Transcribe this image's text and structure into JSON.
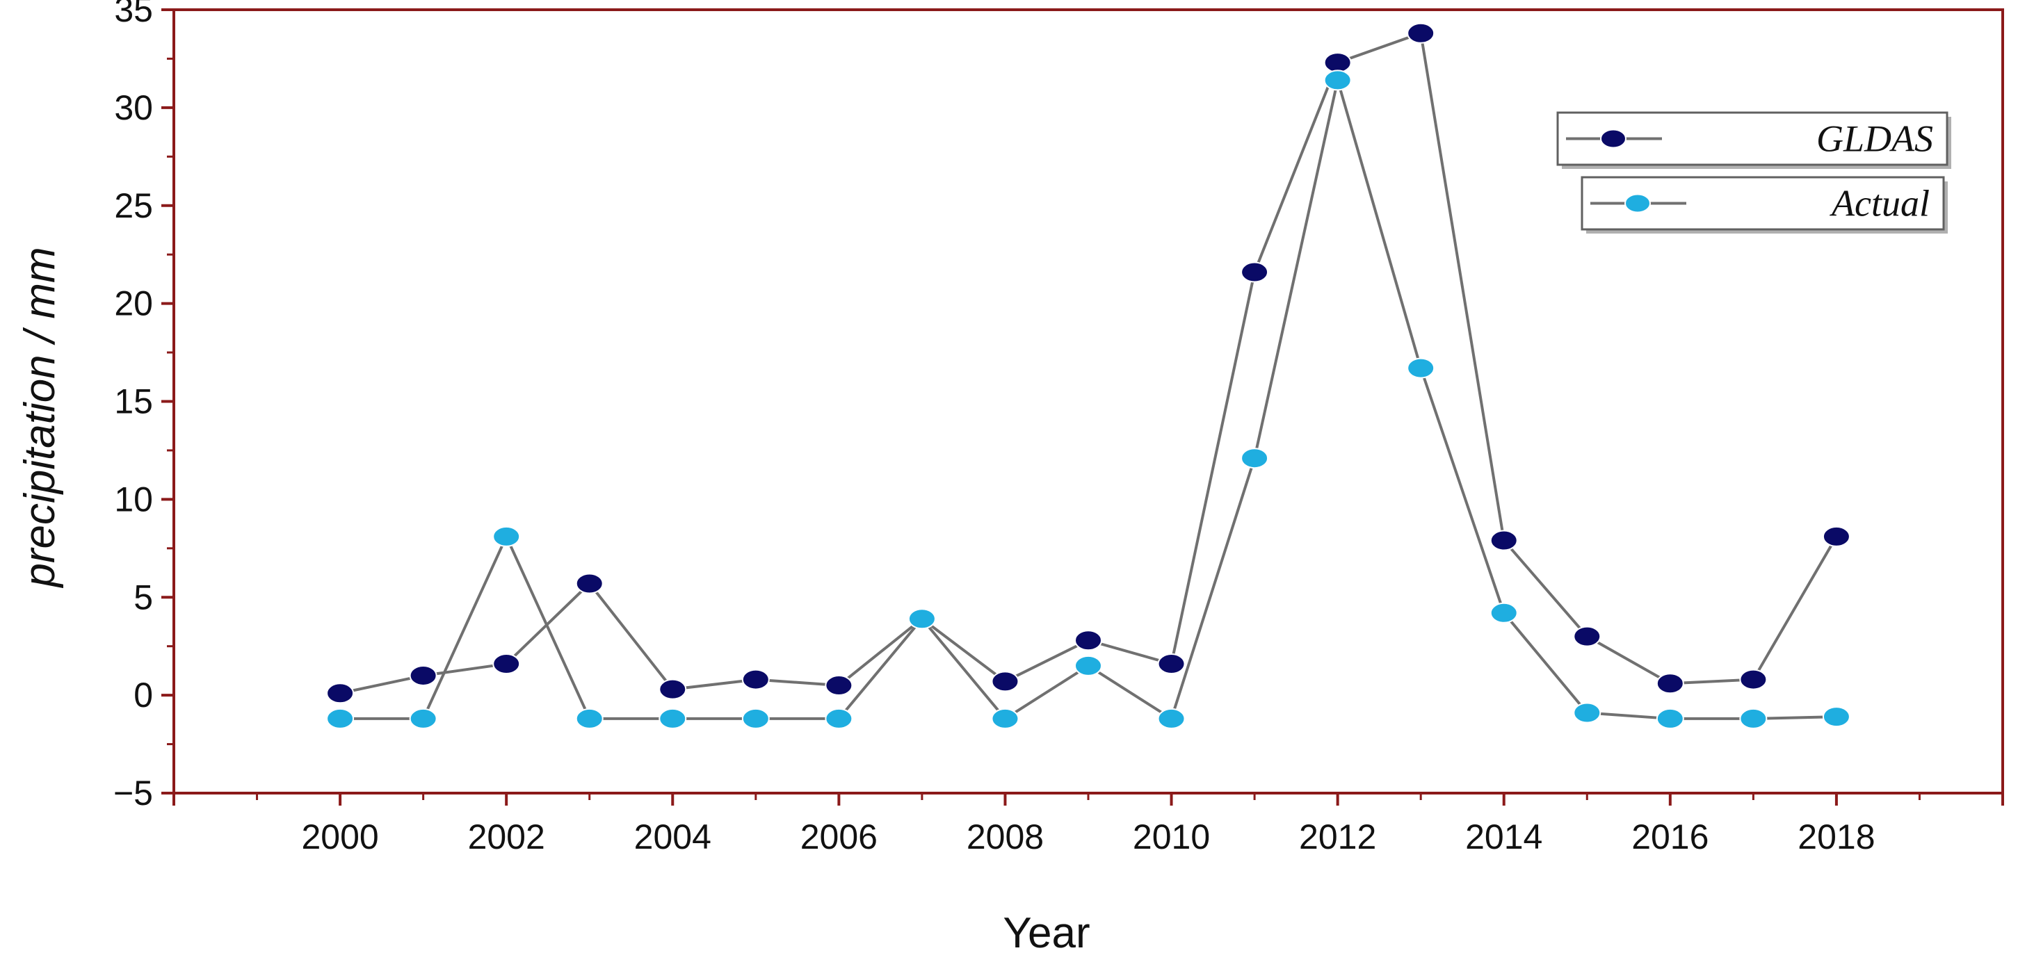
{
  "chart_data": {
    "type": "line",
    "title": "",
    "xlabel": "Year",
    "ylabel": "precipitation / mm",
    "xlim": [
      1998,
      2020
    ],
    "ylim": [
      -5,
      35
    ],
    "x_ticks": [
      "2000",
      "2002",
      "2004",
      "2006",
      "2008",
      "2010",
      "2012",
      "2014",
      "2016",
      "2018"
    ],
    "y_ticks": [
      "−5",
      "0",
      "5",
      "10",
      "15",
      "20",
      "25",
      "30",
      "35"
    ],
    "x": [
      2000,
      2001,
      2002,
      2003,
      2004,
      2005,
      2006,
      2007,
      2008,
      2009,
      2010,
      2011,
      2012,
      2013,
      2014,
      2015,
      2016,
      2017,
      2018
    ],
    "series": [
      {
        "name": "GLDAS",
        "color": "#0a0a66",
        "values": [
          0.1,
          1.0,
          1.6,
          5.7,
          0.3,
          0.8,
          0.5,
          3.9,
          0.7,
          2.8,
          1.6,
          21.6,
          32.3,
          33.8,
          7.9,
          3.0,
          0.6,
          0.8,
          8.1
        ]
      },
      {
        "name": "Actual",
        "color": "#1faee0",
        "values": [
          -1.2,
          -1.2,
          8.1,
          -1.2,
          -1.2,
          -1.2,
          -1.2,
          3.9,
          -1.2,
          1.5,
          -1.2,
          12.1,
          31.4,
          16.7,
          4.2,
          -0.9,
          -1.2,
          -1.2,
          -1.1
        ]
      }
    ],
    "legend_position": "top-right",
    "grid": false,
    "frame_color": "#8b1a1a",
    "line_color": "#707070"
  }
}
